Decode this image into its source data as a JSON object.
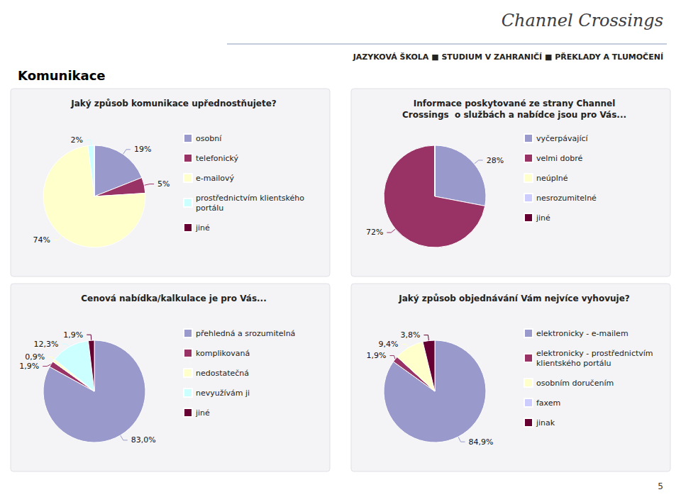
{
  "title": "Komunikace",
  "subtitle": "JAZYKOVÁ ŠKOLA ■ STUDIUM V ZAHRANIČÍ ■ PŘEKLADY A TLUMOČENÍ",
  "annotations": [
    "Channel Crossings",
    "5"
  ],
  "chart_data": [
    {
      "type": "pie",
      "title": "Jaký způsob komunikace upřednostňujete?",
      "categories": [
        "osobní",
        "telefonický",
        "e-mailový",
        "prostřednictvím klientského\nportálu",
        "jiné"
      ],
      "values": [
        19,
        5,
        74,
        2,
        0
      ],
      "value_labels": [
        "19%",
        "5%",
        "74%",
        "2%",
        null
      ],
      "colors": [
        "#9999cc",
        "#993366",
        "#ffffcc",
        "#ccffff",
        "#660033"
      ],
      "legend": "right"
    },
    {
      "type": "pie",
      "title": "Informace poskytované ze strany Channel\nCrossings  o službách a nabídce jsou pro Vás...",
      "categories": [
        "vyčerpávající",
        "velmi dobré",
        "neúplné",
        "nesrozumitelné",
        "jiné"
      ],
      "values": [
        28,
        72,
        0,
        0,
        0
      ],
      "value_labels": [
        "28%",
        "72%",
        null,
        null,
        null
      ],
      "colors": [
        "#9999cc",
        "#993366",
        "#ffffcc",
        "#ccccff",
        "#660033"
      ],
      "legend": "right"
    },
    {
      "type": "pie",
      "title": "Cenová nabídka/kalkulace je pro Vás...",
      "categories": [
        "přehledná a srozumitelná",
        "komplikovaná",
        "nedostatečná",
        "nevyužívám ji",
        "jiné"
      ],
      "values": [
        83.0,
        1.9,
        0.9,
        12.3,
        1.9
      ],
      "value_labels": [
        "83,0%",
        "1,9%",
        "0,9%",
        "12,3%",
        "1,9%"
      ],
      "colors": [
        "#9999cc",
        "#993366",
        "#ffffcc",
        "#ccffff",
        "#660033"
      ],
      "legend": "right"
    },
    {
      "type": "pie",
      "title": "Jaký způsob objednávání Vám nejvíce vyhovuje?",
      "categories": [
        "elektronicky - e-mailem",
        "elektronicky - prostřednictvím\nklientského portálu",
        "osobním doručením",
        "faxem",
        "jinak"
      ],
      "values": [
        84.9,
        1.9,
        9.4,
        0.0,
        3.8
      ],
      "value_labels": [
        "84,9%",
        "1,9%",
        "9,4%",
        null,
        "3,8%"
      ],
      "colors": [
        "#9999cc",
        "#993366",
        "#ffffcc",
        "#ccccff",
        "#660033"
      ],
      "legend": "right"
    }
  ]
}
